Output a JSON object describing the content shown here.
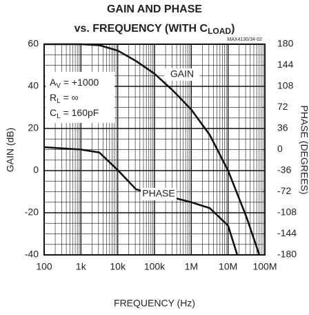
{
  "chart_data": {
    "type": "line",
    "title": "GAIN AND PHASE",
    "subtitle": [
      "vs. FREQUENCY (WITH C",
      "LOAD",
      ")"
    ],
    "code": "MAX4130/34-02",
    "x_label": "FREQUENCY (Hz)",
    "y_label": "GAIN (dB)",
    "y2_label": "PHASE (DEGREES)",
    "x_scale": "log",
    "x": [
      100,
      316,
      1000,
      3162,
      10000,
      31623,
      100000,
      316228,
      1000000,
      3162278,
      10000000,
      31622777,
      70794578
    ],
    "series": [
      {
        "name": "GAIN",
        "color": "#111111",
        "values": [
          60,
          60,
          60,
          59.5,
          57,
          52,
          46,
          38,
          29,
          17,
          0,
          -22,
          -40
        ]
      },
      {
        "name": "PHASE",
        "color": "#111111",
        "axis": "y2",
        "values": [
          4,
          2,
          0,
          -5,
          -35,
          -68,
          -76,
          -82,
          -90,
          -100,
          -130,
          null,
          null
        ]
      }
    ],
    "phase_end": {
      "x": [
        10000000,
        17782794
      ],
      "values": [
        -130,
        -180
      ]
    },
    "annotations": [
      [
        "A",
        "V",
        " = +1000"
      ],
      [
        "R",
        "L",
        " = ∞"
      ],
      [
        "C",
        "L",
        " = 160pF"
      ]
    ],
    "xlim": [
      100,
      100000000
    ],
    "xticks": [
      100,
      {
        "value": 1000,
        "label": "1k"
      },
      {
        "value": 10000,
        "label": "10k"
      },
      {
        "value": 100000,
        "label": "100k"
      },
      {
        "value": 1000000,
        "label": "1M"
      },
      {
        "value": 10000000,
        "label": "10M"
      },
      {
        "value": 100000000,
        "label": "100M"
      }
    ],
    "ylim": [
      -40,
      60
    ],
    "yticks": [
      -40,
      -20,
      0,
      20,
      40,
      60
    ],
    "y2lim": [
      -180,
      180
    ],
    "y2ticks": [
      -180,
      -144,
      -108,
      -72,
      -36,
      0,
      36,
      72,
      108,
      144,
      180
    ],
    "grid": true
  }
}
